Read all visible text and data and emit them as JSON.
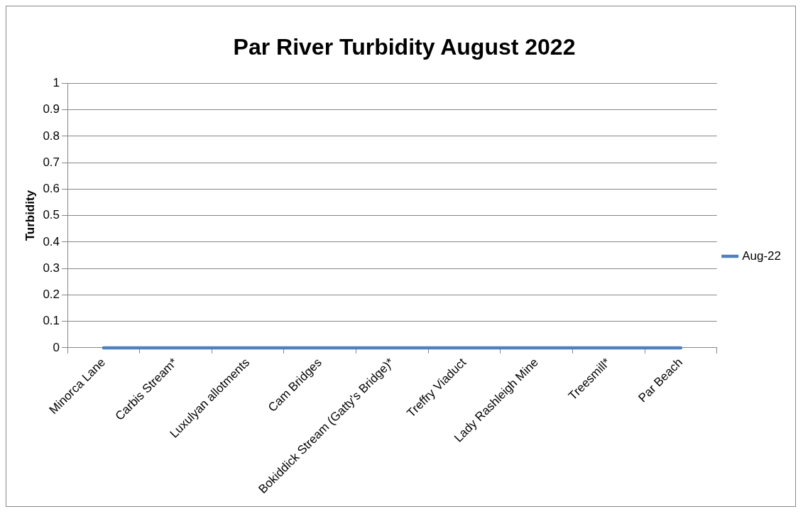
{
  "chart_data": {
    "type": "line",
    "title": "Par River Turbidity August 2022",
    "ylabel": "Turbidity",
    "categories": [
      "Minorca Lane",
      "Carbis Stream*",
      "Luxulyan allotments",
      "Cam Bridges",
      "Bokiddick Stream (Gatty's Bridge)*",
      "Treffry Viaduct",
      "Lady Rashleigh Mine",
      "Treesmill*",
      "Par Beach"
    ],
    "series": [
      {
        "name": "Aug-22",
        "color": "#4f81bd",
        "values": [
          0,
          0,
          0,
          0,
          0,
          0,
          0,
          0,
          0
        ]
      }
    ],
    "ylim": [
      0,
      1
    ],
    "yticks": [
      0,
      0.1,
      0.2,
      0.3,
      0.4,
      0.5,
      0.6,
      0.7,
      0.8,
      0.9,
      1
    ],
    "grid": "y",
    "legend": "right",
    "marker": "none",
    "line_style": "solid"
  }
}
